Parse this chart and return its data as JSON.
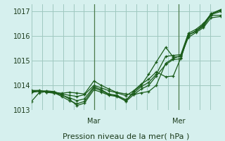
{
  "bg_color": "#d6f0ee",
  "grid_color": "#a0c8c0",
  "line_color": "#1a5c1a",
  "marker_color": "#1a5c1a",
  "xlabel": "Pression niveau de la mer( hPa )",
  "xlabel_fontsize": 8,
  "ylim": [
    1013.0,
    1017.3
  ],
  "yticks": [
    1013,
    1014,
    1015,
    1016,
    1017
  ],
  "day_labels": [
    "Mar",
    "Mer"
  ],
  "day_positions": [
    0.33,
    0.78
  ],
  "series": [
    {
      "x": [
        0.0,
        0.04,
        0.08,
        0.12,
        0.16,
        0.2,
        0.24,
        0.28,
        0.33,
        0.37,
        0.41,
        0.45,
        0.5,
        0.54,
        0.58,
        0.62,
        0.66,
        0.71,
        0.75,
        0.79,
        0.83,
        0.87,
        0.91,
        0.95,
        1.0
      ],
      "y": [
        1013.35,
        1013.7,
        1013.75,
        1013.72,
        1013.68,
        1013.72,
        1013.69,
        1013.65,
        1014.18,
        1014.0,
        1013.85,
        1013.72,
        1013.65,
        1013.62,
        1013.7,
        1013.75,
        1014.0,
        1014.9,
        1015.1,
        1015.2,
        1016.05,
        1016.2,
        1016.4,
        1016.85,
        1016.85
      ]
    },
    {
      "x": [
        0.0,
        0.04,
        0.08,
        0.12,
        0.16,
        0.2,
        0.24,
        0.28,
        0.33,
        0.37,
        0.41,
        0.45,
        0.5,
        0.54,
        0.58,
        0.62,
        0.66,
        0.71,
        0.75,
        0.79,
        0.83,
        0.87,
        0.91,
        0.95,
        1.0
      ],
      "y": [
        1013.72,
        1013.75,
        1013.78,
        1013.75,
        1013.62,
        1013.45,
        1013.18,
        1013.28,
        1013.82,
        1013.72,
        1013.6,
        1013.55,
        1013.38,
        1013.75,
        1014.0,
        1014.45,
        1014.95,
        1015.55,
        1015.15,
        1015.18,
        1015.95,
        1016.15,
        1016.35,
        1016.75,
        1016.8
      ]
    },
    {
      "x": [
        0.0,
        0.04,
        0.08,
        0.12,
        0.16,
        0.2,
        0.24,
        0.28,
        0.33,
        0.37,
        0.41,
        0.45,
        0.5,
        0.54,
        0.58,
        0.62,
        0.66,
        0.71,
        0.75,
        0.79,
        0.83,
        0.87,
        0.91,
        0.95,
        1.0
      ],
      "y": [
        1013.75,
        1013.78,
        1013.72,
        1013.7,
        1013.55,
        1013.38,
        1013.25,
        1013.35,
        1013.9,
        1013.78,
        1013.62,
        1013.58,
        1013.35,
        1013.62,
        1013.85,
        1014.0,
        1014.38,
        1014.85,
        1015.05,
        1015.08,
        1016.05,
        1016.2,
        1016.45,
        1016.88,
        1017.0
      ]
    },
    {
      "x": [
        0.0,
        0.04,
        0.08,
        0.12,
        0.16,
        0.2,
        0.24,
        0.28,
        0.33,
        0.37,
        0.41,
        0.45,
        0.5,
        0.54,
        0.58,
        0.62,
        0.66,
        0.71,
        0.75,
        0.79,
        0.83,
        0.87,
        0.91,
        0.95,
        1.0
      ],
      "y": [
        1013.78,
        1013.8,
        1013.75,
        1013.72,
        1013.6,
        1013.5,
        1013.38,
        1013.45,
        1013.95,
        1013.82,
        1013.65,
        1013.6,
        1013.42,
        1013.68,
        1013.95,
        1014.12,
        1014.45,
        1015.18,
        1015.22,
        1015.25,
        1016.12,
        1016.28,
        1016.52,
        1016.9,
        1017.05
      ]
    },
    {
      "x": [
        0.0,
        0.04,
        0.08,
        0.12,
        0.16,
        0.2,
        0.24,
        0.28,
        0.33,
        0.37,
        0.41,
        0.45,
        0.5,
        0.54,
        0.58,
        0.62,
        0.66,
        0.71,
        0.75,
        0.79,
        0.83,
        0.87,
        0.91,
        0.95,
        1.0
      ],
      "y": [
        1013.8,
        1013.78,
        1013.72,
        1013.68,
        1013.65,
        1013.6,
        1013.55,
        1013.62,
        1014.0,
        1013.9,
        1013.78,
        1013.7,
        1013.58,
        1013.78,
        1014.05,
        1014.25,
        1014.55,
        1014.35,
        1014.38,
        1015.12,
        1016.05,
        1016.22,
        1016.48,
        1016.92,
        1017.08
      ]
    }
  ]
}
